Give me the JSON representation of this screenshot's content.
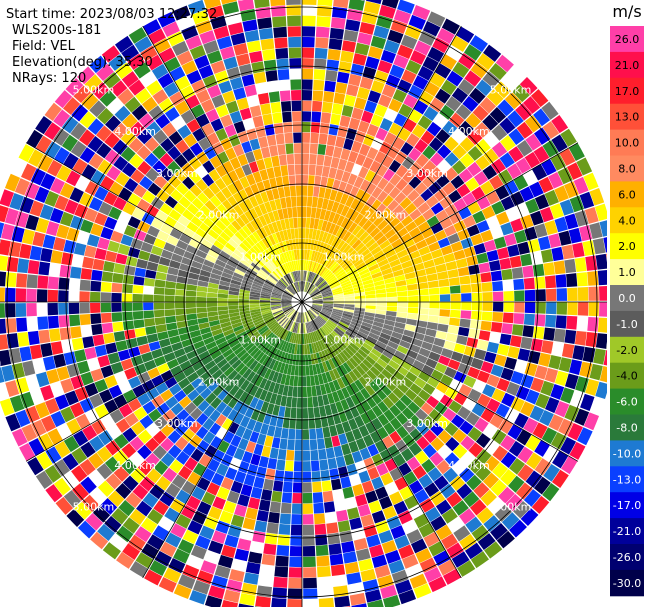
{
  "chart_data": {
    "type": "heatmap",
    "subtype": "radar-ppi",
    "header": {
      "start_time": "Start time: 2023/08/03 12:27:32",
      "instrument": "WLS200s-181",
      "field": "Field: VEL",
      "elevation": "Elevation(deg): 35.30",
      "nrays": "NRays: 120"
    },
    "range_rings_km": [
      1.0,
      2.0,
      3.0,
      4.0,
      5.0
    ],
    "range_ring_labels": [
      "1.00km",
      "2.00km",
      "3.00km",
      "4.00km",
      "5.00km"
    ],
    "max_range_km": 5.4,
    "n_rays": 120,
    "colorbar": {
      "unit": "m/s",
      "levels": [
        26.0,
        21.0,
        17.0,
        13.0,
        10.0,
        8.0,
        6.0,
        4.0,
        2.0,
        1.0,
        0.0,
        -1.0,
        -2.0,
        -4.0,
        -6.0,
        -8.0,
        -10.0,
        -13.0,
        -17.0,
        -21.0,
        -26.0,
        -30.0
      ],
      "tick_labels": [
        "26.0",
        "21.0",
        "17.0",
        "13.0",
        "10.0",
        "8.0",
        "6.0",
        "4.0",
        "2.0",
        "1.0",
        "0.0",
        "-1.0",
        "-2.0",
        "-4.0",
        "-6.0",
        "-8.0",
        "-10.0",
        "-13.0",
        "-17.0",
        "-21.0",
        "-26.0",
        "-30.0"
      ],
      "colors": [
        "#ff3fa8",
        "#ff0f4c",
        "#ff1e2c",
        "#ff5038",
        "#ff7b55",
        "#ff8a60",
        "#ffb000",
        "#ffd200",
        "#ffff00",
        "#ffff99",
        "#777777",
        "#5c5c5c",
        "#a0c828",
        "#6b9c1a",
        "#2a8c2a",
        "#2a7a3a",
        "#1e7ad2",
        "#0a40ff",
        "#0000e6",
        "#00009a",
        "#000070",
        "#00004a"
      ]
    }
  }
}
